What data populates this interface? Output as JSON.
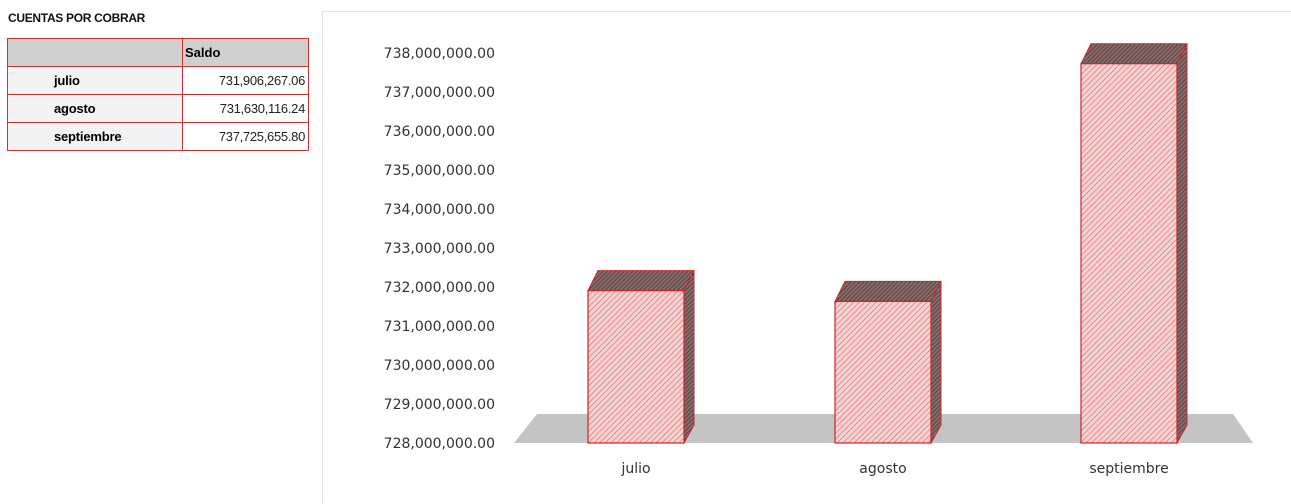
{
  "table": {
    "title": "CUENTAS POR COBRAR",
    "header": {
      "blank": "",
      "saldo": "Saldo"
    },
    "rows": [
      {
        "month": "julio",
        "value": "731,906,267.06"
      },
      {
        "month": "agosto",
        "value": "731,630,116.24"
      },
      {
        "month": "septiembre",
        "value": "737,725,655.80"
      }
    ]
  },
  "chart_data": {
    "type": "bar",
    "categories": [
      "julio",
      "agosto",
      "septiembre"
    ],
    "values": [
      731906267.06,
      731630116.24,
      737725655.8
    ],
    "ylim": [
      728000000,
      738000000
    ],
    "yticks": [
      "728,000,000.00",
      "729,000,000.00",
      "730,000,000.00",
      "731,000,000.00",
      "732,000,000.00",
      "733,000,000.00",
      "734,000,000.00",
      "735,000,000.00",
      "736,000,000.00",
      "737,000,000.00",
      "738,000,000.00"
    ],
    "style": "3d-hatched",
    "colors": {
      "bar_fill": "#f4c6c6",
      "bar_edge": "#c62828",
      "hatch": "#d04a4a",
      "floor": "#c4c4c4"
    },
    "grid": false,
    "legend": "none"
  }
}
